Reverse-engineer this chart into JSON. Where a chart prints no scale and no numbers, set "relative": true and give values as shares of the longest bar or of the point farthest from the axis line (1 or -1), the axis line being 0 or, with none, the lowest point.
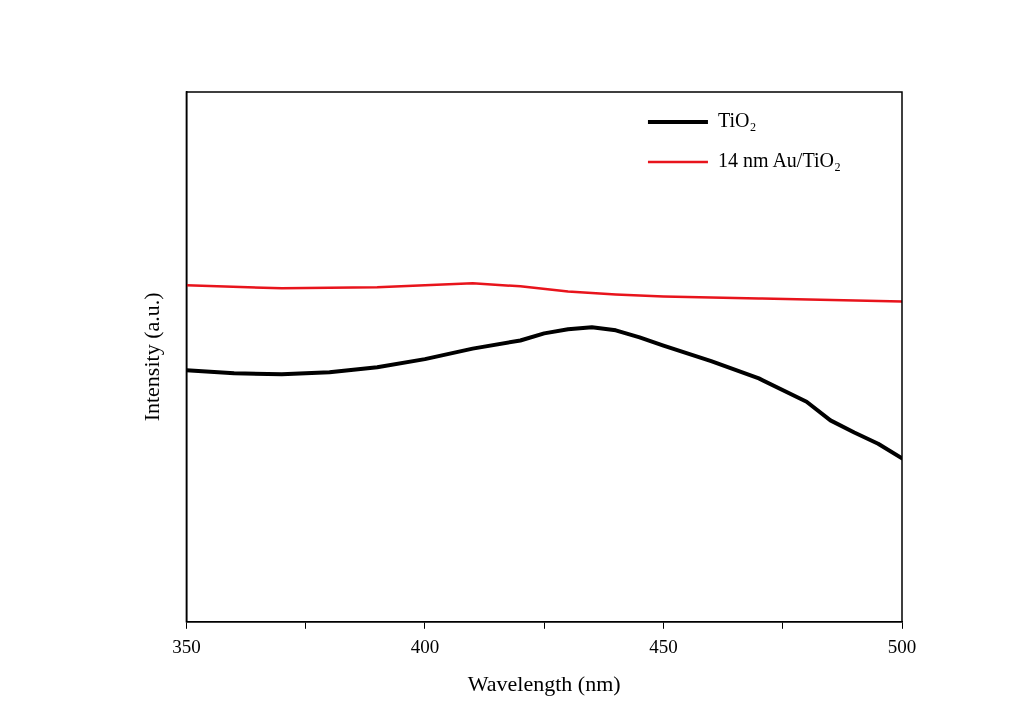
{
  "chart_data": {
    "type": "line",
    "relative": true,
    "xlabel": "Wavelength (nm)",
    "ylabel": "Intensity (a.u.)",
    "xlim": [
      350,
      500
    ],
    "xticks": [
      350,
      {
        "value": 375,
        "label": null
      },
      400,
      {
        "value": 425,
        "label": null
      },
      450,
      {
        "value": 475,
        "label": null
      },
      500
    ],
    "grid": false,
    "legend": "top right",
    "marker": "none",
    "line_style": "solid",
    "series": [
      {
        "name": "TiO₂",
        "color": "#000000",
        "x": [
          350,
          360,
          370,
          380,
          390,
          400,
          410,
          420,
          425,
          430,
          435,
          440,
          445,
          450,
          460,
          470,
          480,
          485,
          490,
          495,
          500
        ],
        "values": [
          0.743,
          0.734,
          0.731,
          0.737,
          0.752,
          0.776,
          0.807,
          0.831,
          0.852,
          0.864,
          0.87,
          0.861,
          0.84,
          0.816,
          0.77,
          0.719,
          0.65,
          0.595,
          0.559,
          0.526,
          0.483
        ]
      },
      {
        "name": "14 nm Au/TiO₂",
        "color": "#e8141c",
        "x": [
          350,
          370,
          390,
          410,
          420,
          430,
          440,
          450,
          470,
          500
        ],
        "values": [
          0.994,
          0.985,
          0.988,
          1,
          0.991,
          0.976,
          0.967,
          0.961,
          0.955,
          0.946
        ]
      }
    ]
  }
}
